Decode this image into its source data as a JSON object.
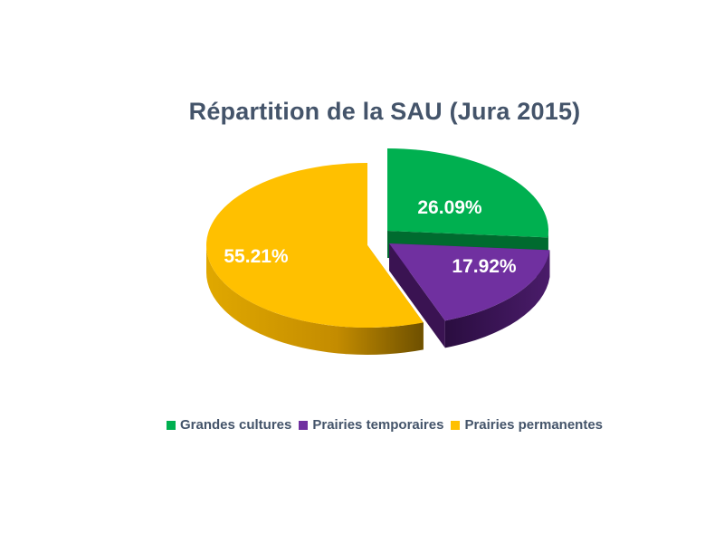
{
  "chart_data": {
    "type": "pie",
    "title": "Répartition de la SAU (Jura 2015)",
    "legend_position": "bottom",
    "slices": [
      {
        "name": "Grandes cultures",
        "value": 26.09,
        "label": "26.09%",
        "color": "#00b050",
        "side_color": "#006b2f"
      },
      {
        "name": "Prairies temporaires",
        "value": 17.92,
        "label": "17.92%",
        "color": "#7030a0",
        "side_color": "#3a1352"
      },
      {
        "name": "Prairies permanentes",
        "value": 55.21,
        "label": "55.21%",
        "color": "#ffc000",
        "side_color": "#c48c00"
      }
    ]
  }
}
